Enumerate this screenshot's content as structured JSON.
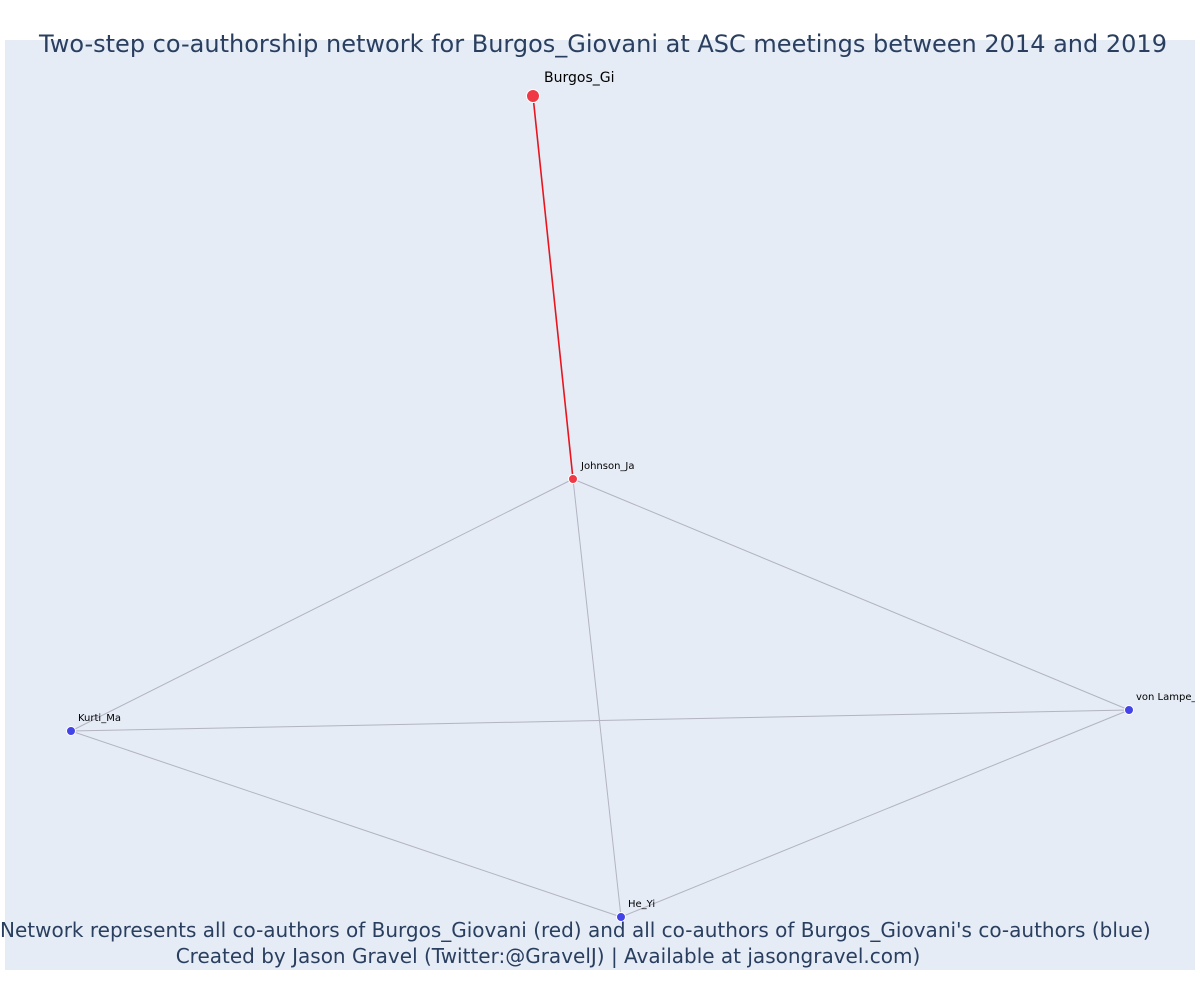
{
  "title": "Two-step co-authorship network for Burgos_Giovani at ASC meetings between 2014 and 2019",
  "captions": {
    "line1": "Network represents all co-authors of Burgos_Giovani (red) and all co-authors of Burgos_Giovani's co-authors (blue)",
    "line2": "Created by Jason Gravel (Twitter:@GravelJ) | Available at jasongravel.com)"
  },
  "colors": {
    "plot_background": "#e5ecf6",
    "ego_edge": "#e8151f",
    "other_edge": "#b3b3c2",
    "coauthor_node": "#ef3a46",
    "second_step_node": "#4343e8",
    "text": "#2a3f5f"
  },
  "network": {
    "nodes": [
      {
        "id": "Burgos_Gi",
        "label": "Burgos_Gi",
        "group": "ego"
      },
      {
        "id": "Johnson_Ja",
        "label": "Johnson_Ja",
        "group": "coauthor"
      },
      {
        "id": "Kurti_Ma",
        "label": "Kurti_Ma",
        "group": "second_step"
      },
      {
        "id": "He_Yi",
        "label": "He_Yi",
        "group": "second_step"
      },
      {
        "id": "von_Lampe",
        "label": "von Lampe_K",
        "group": "second_step"
      }
    ],
    "edges": [
      {
        "source": "Burgos_Gi",
        "target": "Johnson_Ja",
        "type": "ego"
      },
      {
        "source": "Johnson_Ja",
        "target": "Kurti_Ma",
        "type": "other"
      },
      {
        "source": "Johnson_Ja",
        "target": "He_Yi",
        "type": "other"
      },
      {
        "source": "Johnson_Ja",
        "target": "von_Lampe",
        "type": "other"
      },
      {
        "source": "Kurti_Ma",
        "target": "von_Lampe",
        "type": "other"
      },
      {
        "source": "Kurti_Ma",
        "target": "He_Yi",
        "type": "other"
      },
      {
        "source": "He_Yi",
        "target": "von_Lampe",
        "type": "other"
      }
    ]
  }
}
